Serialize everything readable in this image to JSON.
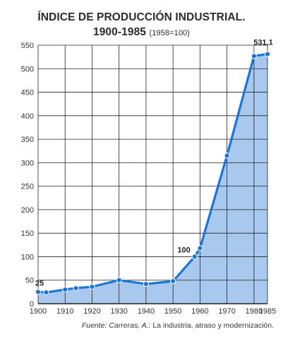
{
  "chart_data": {
    "type": "area",
    "title": "ÍNDICE DE PRODUCCIÓN INDUSTRIAL.",
    "subtitle": "1900-1985",
    "subtitle_note": "(1958=100)",
    "xlabel": "",
    "ylabel": "",
    "x_ticks": [
      1900,
      1910,
      1920,
      1930,
      1940,
      1950,
      1960,
      1970,
      1980,
      1985
    ],
    "y_ticks": [
      0,
      50,
      100,
      150,
      200,
      250,
      300,
      350,
      400,
      450,
      500,
      550
    ],
    "xlim": [
      1900,
      1985
    ],
    "ylim": [
      0,
      550
    ],
    "grid": true,
    "series": [
      {
        "x": [
          1900,
          1903,
          1910,
          1914,
          1920,
          1930,
          1940,
          1950,
          1958,
          1960,
          1970,
          1980,
          1985
        ],
        "values": [
          25,
          24,
          30,
          33,
          36,
          50,
          42,
          48,
          100,
          118,
          315,
          527,
          531.1
        ]
      }
    ],
    "annotations": [
      {
        "x": 1900,
        "y": 25,
        "label": "25"
      },
      {
        "x": 1958,
        "y": 100,
        "label": "100"
      },
      {
        "x": 1985,
        "y": 531.1,
        "label": "531,1"
      }
    ],
    "colors": {
      "line": "#1c74d4",
      "fill": "#a9c8ee",
      "grid": "#222222"
    }
  },
  "source": {
    "author": "Fuente: Carreras, A.:",
    "work": "La industria, atraso y modernización."
  }
}
